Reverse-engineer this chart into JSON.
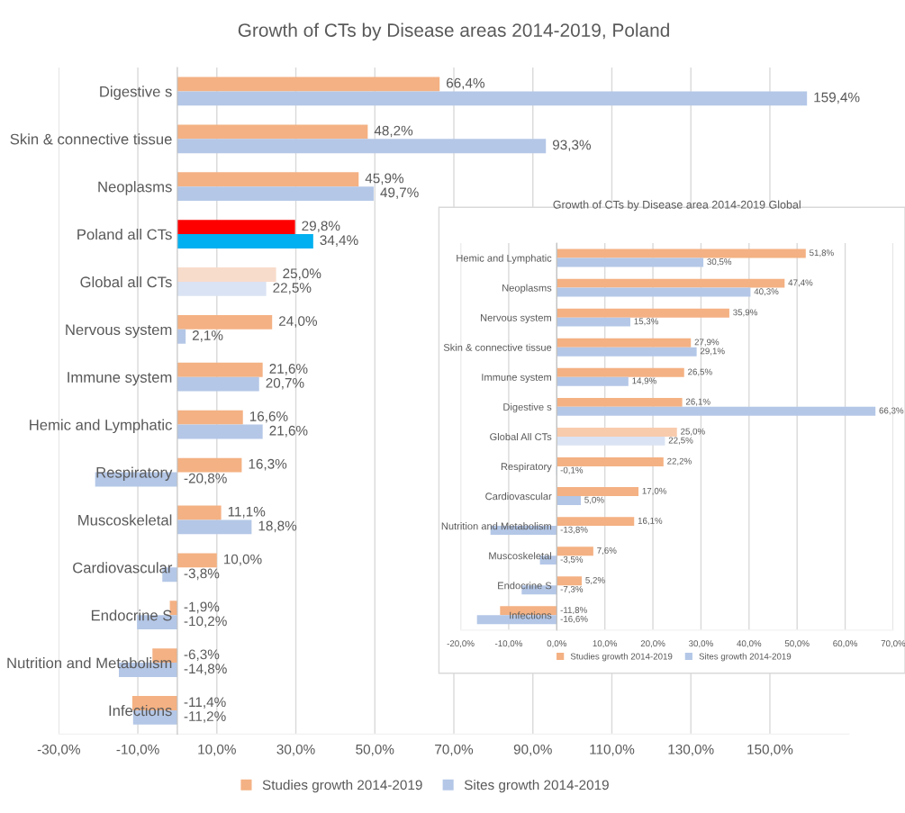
{
  "chart_data": [
    {
      "type": "bar",
      "orientation": "horizontal",
      "title": "Growth of CTs by Disease areas 2014-2019, Poland",
      "categories": [
        "Digestive s",
        "Skin & connective tissue",
        "Neoplasms",
        "Poland all CTs",
        "Global all CTs",
        "Nervous system",
        "Immune system",
        "Hemic and Lymphatic",
        "Respiratory",
        "Muscoskeletal",
        "Cardiovascular",
        "Endocrine S",
        "Nutrition and Metabolism",
        "Infections"
      ],
      "series": [
        {
          "name": "Studies growth 2014-2019",
          "color": "#f4b183",
          "colors": [
            "#f4b183",
            "#f4b183",
            "#f4b183",
            "#ff0000",
            "#f8dccb",
            "#f4b183",
            "#f4b183",
            "#f4b183",
            "#f4b183",
            "#f4b183",
            "#f4b183",
            "#f4b183",
            "#f4b183",
            "#f4b183"
          ],
          "values": [
            66.4,
            48.2,
            45.9,
            29.8,
            25.0,
            24.0,
            21.6,
            16.6,
            16.3,
            11.1,
            10.0,
            -1.9,
            -6.3,
            -11.4
          ],
          "value_labels": [
            "66,4%",
            "48,2%",
            "45,9%",
            "29,8%",
            "25,0%",
            "24,0%",
            "21,6%",
            "16,6%",
            "16,3%",
            "11,1%",
            "10,0%",
            "-1,9%",
            "-6,3%",
            "-11,4%"
          ]
        },
        {
          "name": "Sites growth 2014-2019",
          "color": "#b4c7e7",
          "colors": [
            "#b4c7e7",
            "#b4c7e7",
            "#b4c7e7",
            "#00b0f0",
            "#dae3f3",
            "#b4c7e7",
            "#b4c7e7",
            "#b4c7e7",
            "#b4c7e7",
            "#b4c7e7",
            "#b4c7e7",
            "#b4c7e7",
            "#b4c7e7",
            "#b4c7e7"
          ],
          "values": [
            159.4,
            93.3,
            49.7,
            34.4,
            22.5,
            2.1,
            20.7,
            21.6,
            -20.8,
            18.8,
            -3.8,
            -10.2,
            -14.8,
            -11.2
          ],
          "value_labels": [
            "159,4%",
            "93,3%",
            "49,7%",
            "34,4%",
            "22,5%",
            "2,1%",
            "20,7%",
            "21,6%",
            "-20,8%",
            "18,8%",
            "-3,8%",
            "-10,2%",
            "-14,8%",
            "-11,2%"
          ]
        }
      ],
      "xlim": [
        -30,
        170
      ],
      "xticks": [
        {
          "value": -30,
          "label": "-30,0%"
        },
        {
          "value": -10,
          "label": "-10,0%"
        },
        {
          "value": 10,
          "label": "10,0%"
        },
        {
          "value": 30,
          "label": "30,0%"
        },
        {
          "value": 50,
          "label": "50,0%"
        },
        {
          "value": 70,
          "label": "70,0%"
        },
        {
          "value": 90,
          "label": "90,0%"
        },
        {
          "value": 110,
          "label": "110,0%"
        },
        {
          "value": 130,
          "label": "130,0%"
        },
        {
          "value": 150,
          "label": "150,0%"
        }
      ],
      "grid": "x",
      "legend": "bottom"
    },
    {
      "type": "bar",
      "orientation": "horizontal",
      "title": "Growth of CTs by Disease area 2014-2019 Global",
      "categories": [
        "Hemic and Lymphatic",
        "Neoplasms",
        "Nervous system",
        "Skin & connective tissue",
        "Immune system",
        "Digestive s",
        "Global All CTs",
        "Respiratory",
        "Cardiovascular",
        "Nutrition and Metabolism",
        "Muscoskeletal",
        "Endocrine S",
        "Infections"
      ],
      "series": [
        {
          "name": "Studies growth 2014-2019",
          "color": "#f4b183",
          "colors": [
            "#f4b183",
            "#f4b183",
            "#f4b183",
            "#f4b183",
            "#f4b183",
            "#f4b183",
            "#f8cbad",
            "#f4b183",
            "#f4b183",
            "#f4b183",
            "#f4b183",
            "#f4b183",
            "#f4b183"
          ],
          "values": [
            51.8,
            47.4,
            35.9,
            27.9,
            26.5,
            26.1,
            25.0,
            22.2,
            17.0,
            16.1,
            7.6,
            5.2,
            -11.8
          ],
          "value_labels": [
            "51,8%",
            "47,4%",
            "35,9%",
            "27,9%",
            "26,5%",
            "26,1%",
            "25,0%",
            "22,2%",
            "17,0%",
            "16,1%",
            "7,6%",
            "5,2%",
            "-11,8%"
          ]
        },
        {
          "name": "Sites growth 2014-2019",
          "color": "#b4c7e7",
          "colors": [
            "#b4c7e7",
            "#b4c7e7",
            "#b4c7e7",
            "#b4c7e7",
            "#b4c7e7",
            "#b4c7e7",
            "#dae3f3",
            "#b4c7e7",
            "#b4c7e7",
            "#b4c7e7",
            "#b4c7e7",
            "#b4c7e7",
            "#b4c7e7"
          ],
          "values": [
            30.5,
            40.3,
            15.3,
            29.1,
            14.9,
            66.3,
            22.5,
            -0.1,
            5.0,
            -13.8,
            -3.5,
            -7.3,
            -16.6
          ],
          "value_labels": [
            "30,5%",
            "40,3%",
            "15,3%",
            "29,1%",
            "14,9%",
            "66,3%",
            "22,5%",
            "-0,1%",
            "5,0%",
            "-13,8%",
            "-3,5%",
            "-7,3%",
            "-16,6%"
          ]
        }
      ],
      "xlim": [
        -20,
        70
      ],
      "xticks": [
        {
          "value": -20,
          "label": "-20,0%"
        },
        {
          "value": -10,
          "label": "-10,0%"
        },
        {
          "value": 0,
          "label": "0,0%"
        },
        {
          "value": 10,
          "label": "10,0%"
        },
        {
          "value": 20,
          "label": "20,0%"
        },
        {
          "value": 30,
          "label": "30,0%"
        },
        {
          "value": 40,
          "label": "40,0%"
        },
        {
          "value": 50,
          "label": "50,0%"
        },
        {
          "value": 60,
          "label": "60,0%"
        },
        {
          "value": 70,
          "label": "70,0%"
        }
      ],
      "grid": "x",
      "legend": "bottom"
    }
  ]
}
